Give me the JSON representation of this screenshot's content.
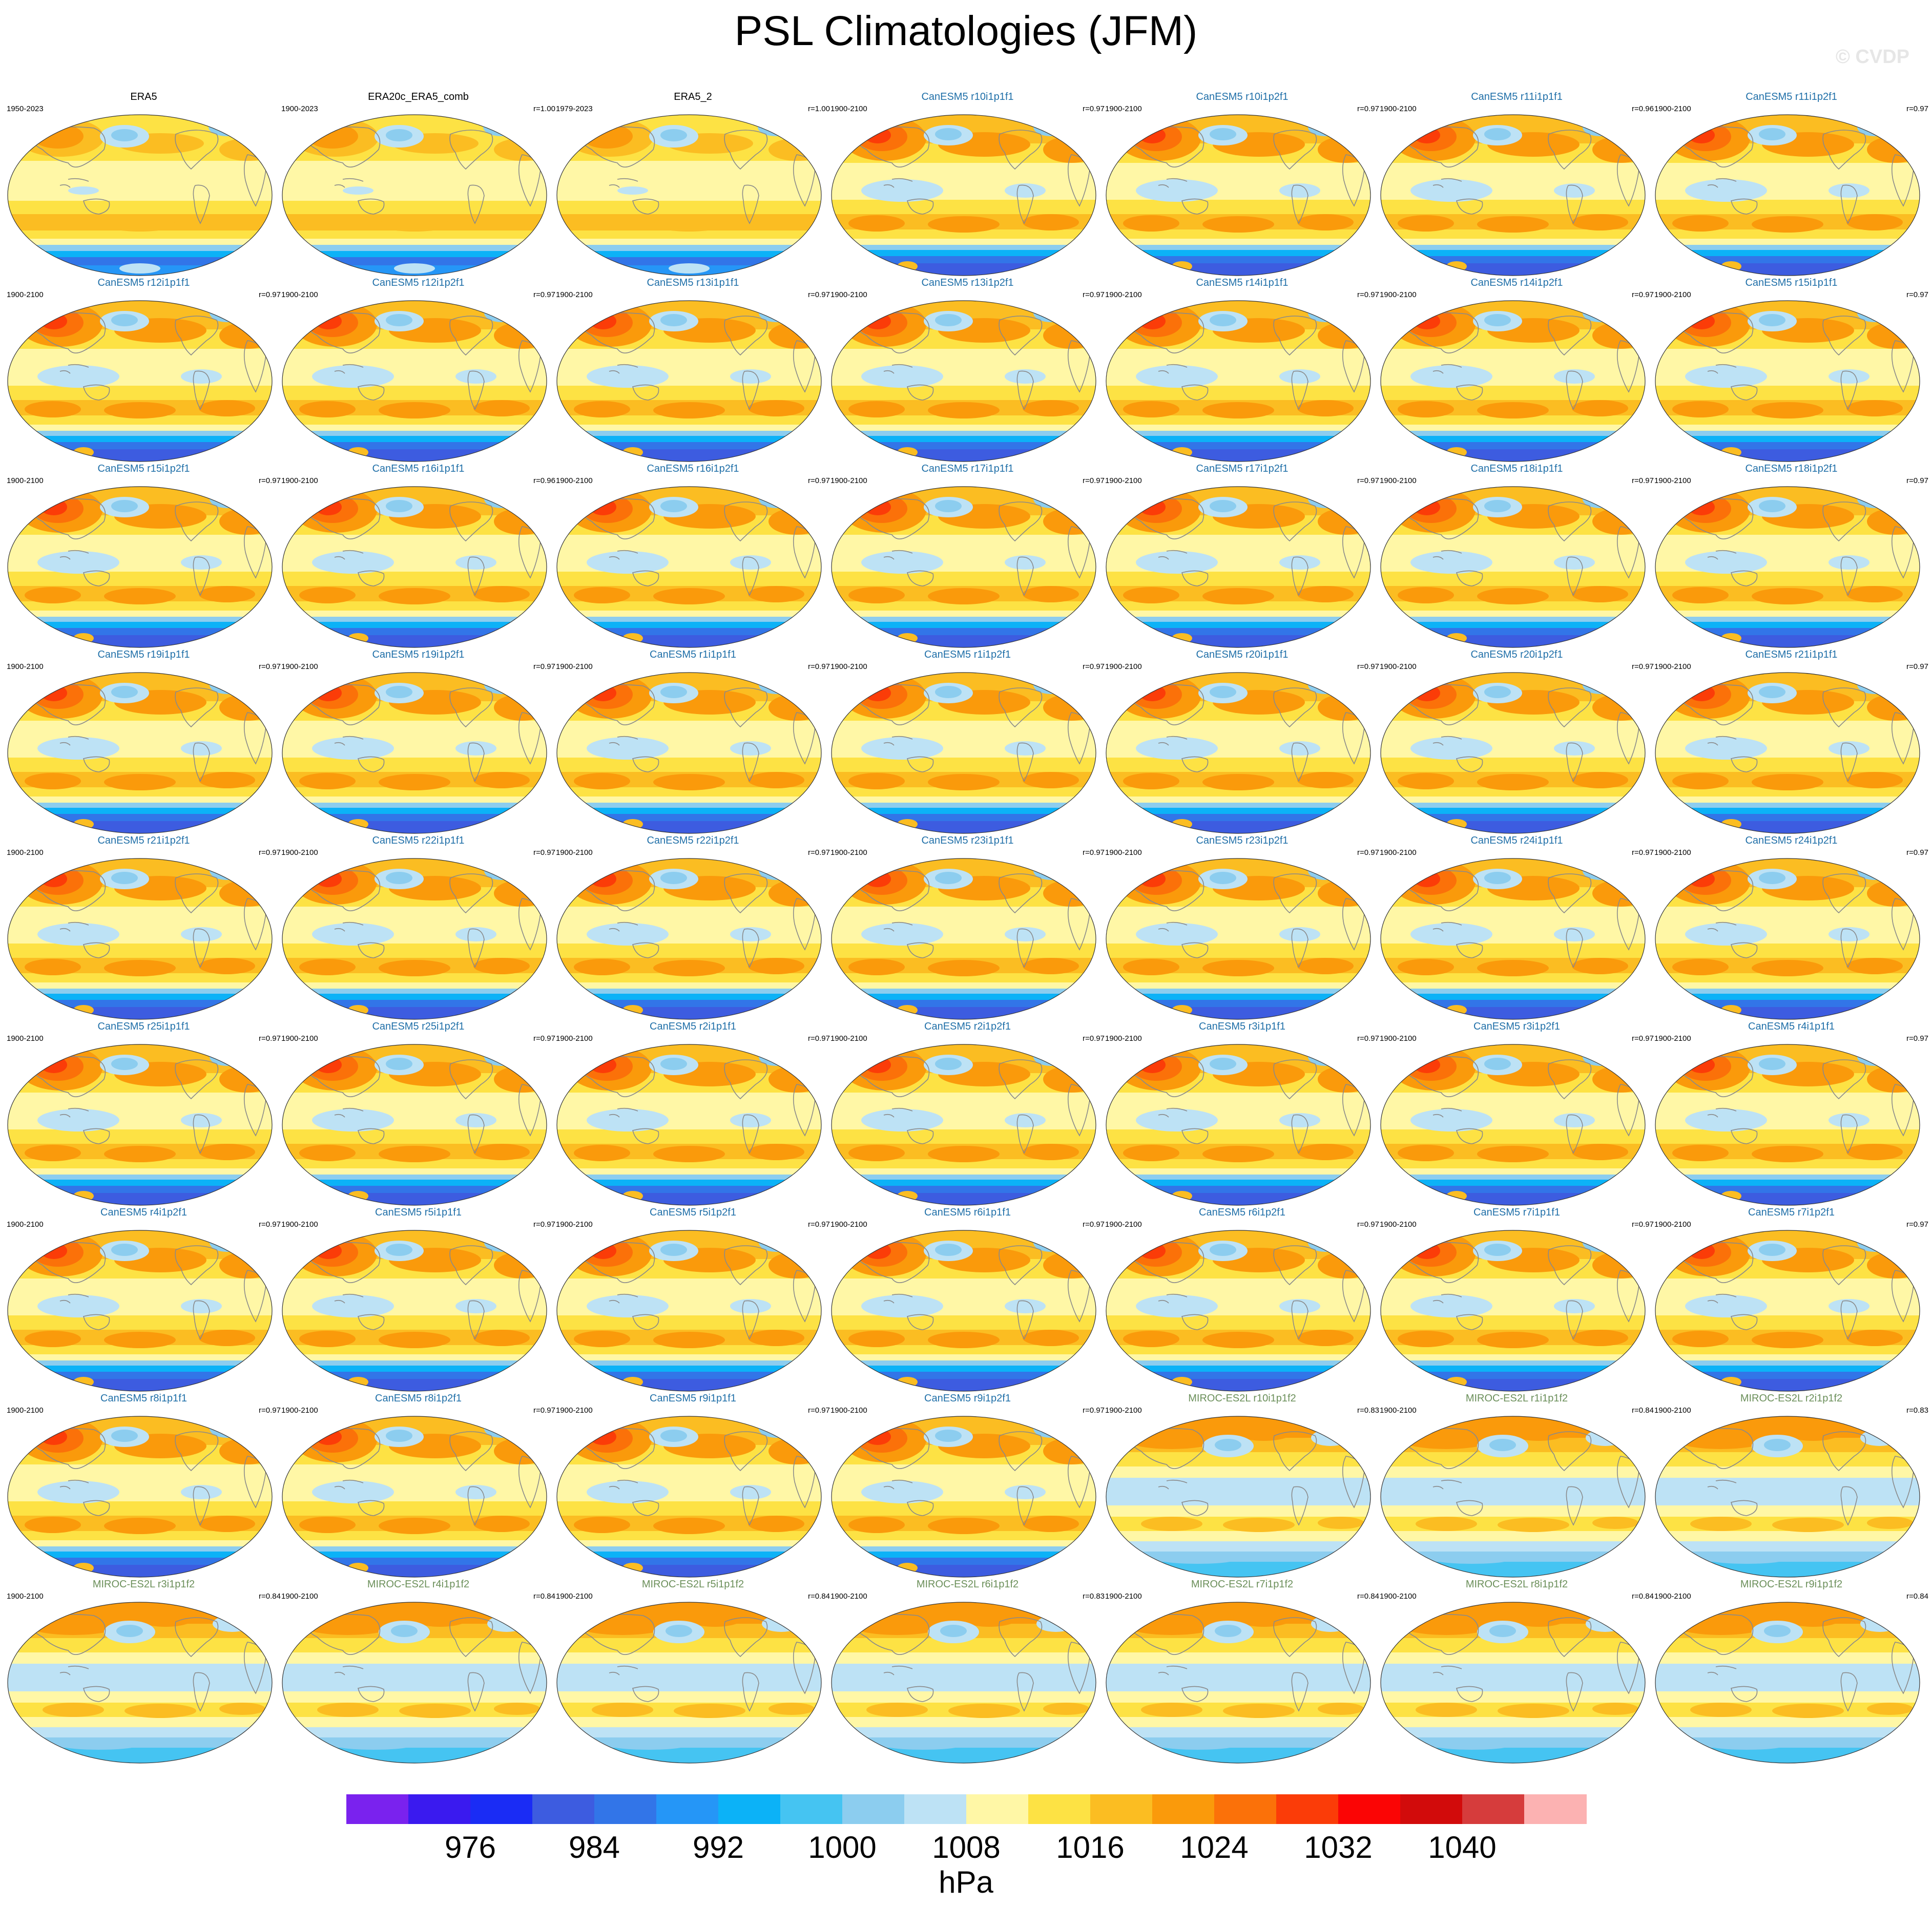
{
  "title": "PSL Climatologies (JFM)",
  "watermark": "© CVDP",
  "panels": [
    {
      "name": "ERA5",
      "years": "1950-2023",
      "r": "",
      "kind": "obs"
    },
    {
      "name": "ERA20c_ERA5_comb",
      "years": "1900-2023",
      "r": "r=1.00",
      "kind": "obs"
    },
    {
      "name": "ERA5_2",
      "years": "1979-2023",
      "r": "r=1.00",
      "kind": "obs"
    },
    {
      "name": "CanESM5 r10i1p1f1",
      "years": "1900-2100",
      "r": "r=0.97",
      "kind": "canesm"
    },
    {
      "name": "CanESM5 r10i1p2f1",
      "years": "1900-2100",
      "r": "r=0.97",
      "kind": "canesm"
    },
    {
      "name": "CanESM5 r11i1p1f1",
      "years": "1900-2100",
      "r": "r=0.96",
      "kind": "canesm"
    },
    {
      "name": "CanESM5 r11i1p2f1",
      "years": "1900-2100",
      "r": "r=0.97",
      "kind": "canesm"
    },
    {
      "name": "CanESM5 r12i1p1f1",
      "years": "1900-2100",
      "r": "r=0.97",
      "kind": "canesm"
    },
    {
      "name": "CanESM5 r12i1p2f1",
      "years": "1900-2100",
      "r": "r=0.97",
      "kind": "canesm"
    },
    {
      "name": "CanESM5 r13i1p1f1",
      "years": "1900-2100",
      "r": "r=0.97",
      "kind": "canesm"
    },
    {
      "name": "CanESM5 r13i1p2f1",
      "years": "1900-2100",
      "r": "r=0.97",
      "kind": "canesm"
    },
    {
      "name": "CanESM5 r14i1p1f1",
      "years": "1900-2100",
      "r": "r=0.97",
      "kind": "canesm"
    },
    {
      "name": "CanESM5 r14i1p2f1",
      "years": "1900-2100",
      "r": "r=0.97",
      "kind": "canesm"
    },
    {
      "name": "CanESM5 r15i1p1f1",
      "years": "1900-2100",
      "r": "r=0.97",
      "kind": "canesm"
    },
    {
      "name": "CanESM5 r15i1p2f1",
      "years": "1900-2100",
      "r": "r=0.97",
      "kind": "canesm"
    },
    {
      "name": "CanESM5 r16i1p1f1",
      "years": "1900-2100",
      "r": "r=0.96",
      "kind": "canesm"
    },
    {
      "name": "CanESM5 r16i1p2f1",
      "years": "1900-2100",
      "r": "r=0.97",
      "kind": "canesm"
    },
    {
      "name": "CanESM5 r17i1p1f1",
      "years": "1900-2100",
      "r": "r=0.97",
      "kind": "canesm"
    },
    {
      "name": "CanESM5 r17i1p2f1",
      "years": "1900-2100",
      "r": "r=0.97",
      "kind": "canesm"
    },
    {
      "name": "CanESM5 r18i1p1f1",
      "years": "1900-2100",
      "r": "r=0.97",
      "kind": "canesm"
    },
    {
      "name": "CanESM5 r18i1p2f1",
      "years": "1900-2100",
      "r": "r=0.97",
      "kind": "canesm"
    },
    {
      "name": "CanESM5 r19i1p1f1",
      "years": "1900-2100",
      "r": "r=0.97",
      "kind": "canesm"
    },
    {
      "name": "CanESM5 r19i1p2f1",
      "years": "1900-2100",
      "r": "r=0.97",
      "kind": "canesm"
    },
    {
      "name": "CanESM5 r1i1p1f1",
      "years": "1900-2100",
      "r": "r=0.97",
      "kind": "canesm"
    },
    {
      "name": "CanESM5 r1i1p2f1",
      "years": "1900-2100",
      "r": "r=0.97",
      "kind": "canesm"
    },
    {
      "name": "CanESM5 r20i1p1f1",
      "years": "1900-2100",
      "r": "r=0.97",
      "kind": "canesm"
    },
    {
      "name": "CanESM5 r20i1p2f1",
      "years": "1900-2100",
      "r": "r=0.97",
      "kind": "canesm"
    },
    {
      "name": "CanESM5 r21i1p1f1",
      "years": "1900-2100",
      "r": "r=0.97",
      "kind": "canesm"
    },
    {
      "name": "CanESM5 r21i1p2f1",
      "years": "1900-2100",
      "r": "r=0.97",
      "kind": "canesm"
    },
    {
      "name": "CanESM5 r22i1p1f1",
      "years": "1900-2100",
      "r": "r=0.97",
      "kind": "canesm"
    },
    {
      "name": "CanESM5 r22i1p2f1",
      "years": "1900-2100",
      "r": "r=0.97",
      "kind": "canesm"
    },
    {
      "name": "CanESM5 r23i1p1f1",
      "years": "1900-2100",
      "r": "r=0.97",
      "kind": "canesm"
    },
    {
      "name": "CanESM5 r23i1p2f1",
      "years": "1900-2100",
      "r": "r=0.97",
      "kind": "canesm"
    },
    {
      "name": "CanESM5 r24i1p1f1",
      "years": "1900-2100",
      "r": "r=0.97",
      "kind": "canesm"
    },
    {
      "name": "CanESM5 r24i1p2f1",
      "years": "1900-2100",
      "r": "r=0.97",
      "kind": "canesm"
    },
    {
      "name": "CanESM5 r25i1p1f1",
      "years": "1900-2100",
      "r": "r=0.97",
      "kind": "canesm"
    },
    {
      "name": "CanESM5 r25i1p2f1",
      "years": "1900-2100",
      "r": "r=0.97",
      "kind": "canesm"
    },
    {
      "name": "CanESM5 r2i1p1f1",
      "years": "1900-2100",
      "r": "r=0.97",
      "kind": "canesm"
    },
    {
      "name": "CanESM5 r2i1p2f1",
      "years": "1900-2100",
      "r": "r=0.97",
      "kind": "canesm"
    },
    {
      "name": "CanESM5 r3i1p1f1",
      "years": "1900-2100",
      "r": "r=0.97",
      "kind": "canesm"
    },
    {
      "name": "CanESM5 r3i1p2f1",
      "years": "1900-2100",
      "r": "r=0.97",
      "kind": "canesm"
    },
    {
      "name": "CanESM5 r4i1p1f1",
      "years": "1900-2100",
      "r": "r=0.97",
      "kind": "canesm"
    },
    {
      "name": "CanESM5 r4i1p2f1",
      "years": "1900-2100",
      "r": "r=0.97",
      "kind": "canesm"
    },
    {
      "name": "CanESM5 r5i1p1f1",
      "years": "1900-2100",
      "r": "r=0.97",
      "kind": "canesm"
    },
    {
      "name": "CanESM5 r5i1p2f1",
      "years": "1900-2100",
      "r": "r=0.97",
      "kind": "canesm"
    },
    {
      "name": "CanESM5 r6i1p1f1",
      "years": "1900-2100",
      "r": "r=0.97",
      "kind": "canesm"
    },
    {
      "name": "CanESM5 r6i1p2f1",
      "years": "1900-2100",
      "r": "r=0.97",
      "kind": "canesm"
    },
    {
      "name": "CanESM5 r7i1p1f1",
      "years": "1900-2100",
      "r": "r=0.97",
      "kind": "canesm"
    },
    {
      "name": "CanESM5 r7i1p2f1",
      "years": "1900-2100",
      "r": "r=0.97",
      "kind": "canesm"
    },
    {
      "name": "CanESM5 r8i1p1f1",
      "years": "1900-2100",
      "r": "r=0.97",
      "kind": "canesm"
    },
    {
      "name": "CanESM5 r8i1p2f1",
      "years": "1900-2100",
      "r": "r=0.97",
      "kind": "canesm"
    },
    {
      "name": "CanESM5 r9i1p1f1",
      "years": "1900-2100",
      "r": "r=0.97",
      "kind": "canesm"
    },
    {
      "name": "CanESM5 r9i1p2f1",
      "years": "1900-2100",
      "r": "r=0.97",
      "kind": "canesm"
    },
    {
      "name": "MIROC-ES2L r10i1p1f2",
      "years": "1900-2100",
      "r": "r=0.83",
      "kind": "miroc"
    },
    {
      "name": "MIROC-ES2L r1i1p1f2",
      "years": "1900-2100",
      "r": "r=0.84",
      "kind": "miroc"
    },
    {
      "name": "MIROC-ES2L r2i1p1f2",
      "years": "1900-2100",
      "r": "r=0.83",
      "kind": "miroc"
    },
    {
      "name": "MIROC-ES2L r3i1p1f2",
      "years": "1900-2100",
      "r": "r=0.84",
      "kind": "miroc"
    },
    {
      "name": "MIROC-ES2L r4i1p1f2",
      "years": "1900-2100",
      "r": "r=0.84",
      "kind": "miroc"
    },
    {
      "name": "MIROC-ES2L r5i1p1f2",
      "years": "1900-2100",
      "r": "r=0.84",
      "kind": "miroc"
    },
    {
      "name": "MIROC-ES2L r6i1p1f2",
      "years": "1900-2100",
      "r": "r=0.83",
      "kind": "miroc"
    },
    {
      "name": "MIROC-ES2L r7i1p1f2",
      "years": "1900-2100",
      "r": "r=0.84",
      "kind": "miroc"
    },
    {
      "name": "MIROC-ES2L r8i1p1f2",
      "years": "1900-2100",
      "r": "r=0.84",
      "kind": "miroc"
    },
    {
      "name": "MIROC-ES2L r9i1p1f2",
      "years": "1900-2100",
      "r": "r=0.84",
      "kind": "miroc"
    }
  ],
  "title_colors": {
    "obs": "#000000",
    "canesm": "#1f6fa8",
    "miroc": "#6b8f5a"
  },
  "colorbar": {
    "colors": [
      "#7a22ee",
      "#3a1aef",
      "#1a2cf5",
      "#3d5ce0",
      "#3275e8",
      "#2596f7",
      "#0cb2f7",
      "#45c4f2",
      "#8ccdef",
      "#bde2f5",
      "#fff7a6",
      "#fde244",
      "#fbbd22",
      "#fa9a0b",
      "#fb7109",
      "#fb3c08",
      "#fb0505",
      "#d20b0b",
      "#d63c3c",
      "#fcb2b2"
    ],
    "tick_labels": [
      "976",
      "984",
      "992",
      "1000",
      "1008",
      "1016",
      "1024",
      "1032",
      "1040"
    ],
    "units": "hPa"
  }
}
